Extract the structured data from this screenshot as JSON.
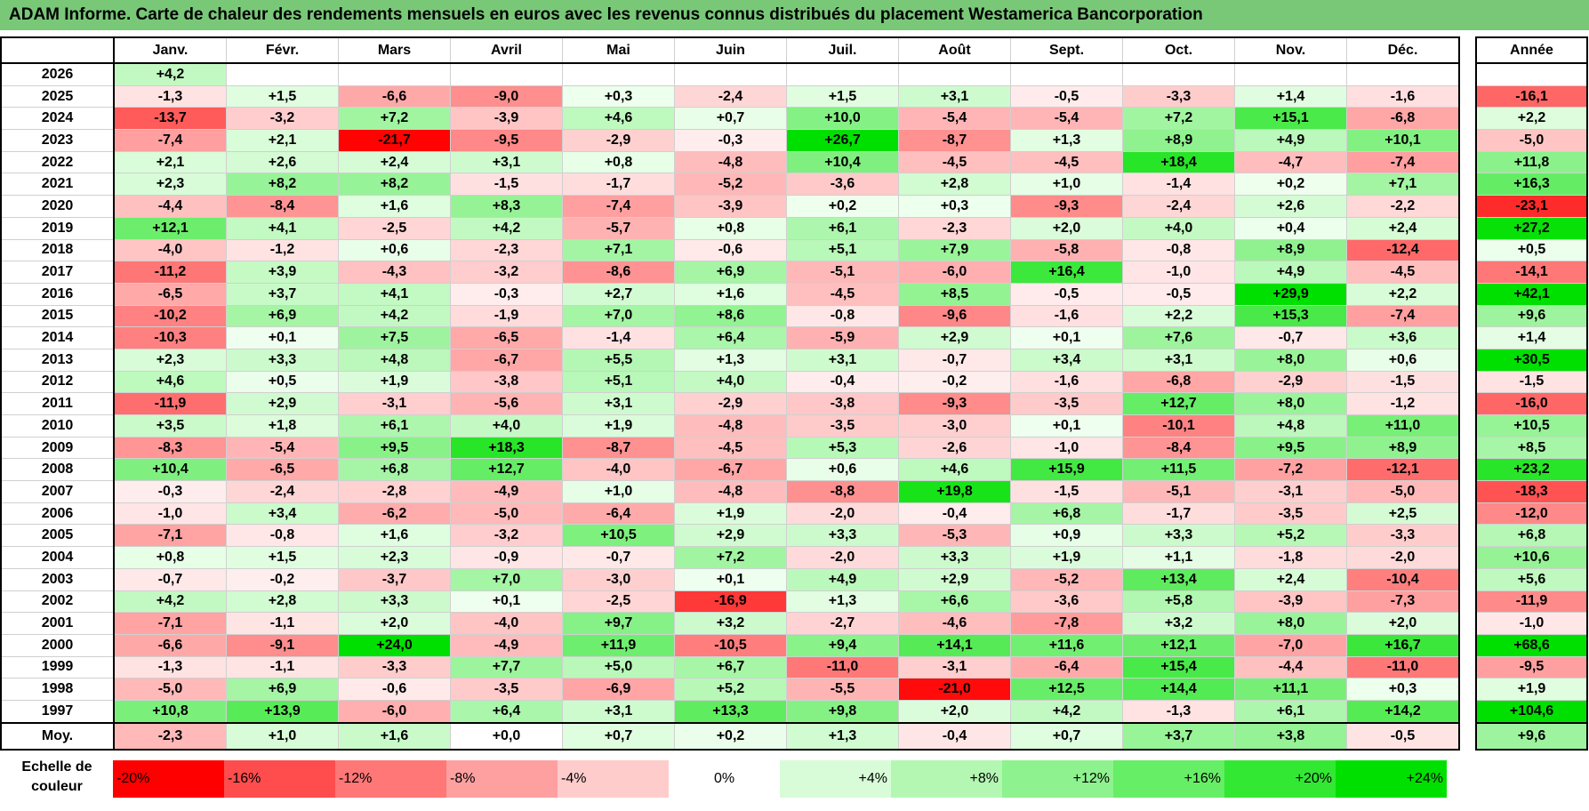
{
  "title": "ADAM Informe. Carte de chaleur des rendements mensuels en euros avec les revenus connus distribués du placement Westamerica Bancorporation",
  "chart_data": {
    "type": "heatmap",
    "title": "ADAM Informe. Carte de chaleur des rendements mensuels en euros avec les revenus connus distribués du placement Westamerica Bancorporation",
    "columns": [
      "Janv.",
      "Févr.",
      "Mars",
      "Avril",
      "Mai",
      "Juin",
      "Juil.",
      "Août",
      "Sept.",
      "Oct.",
      "Nov.",
      "Déc."
    ],
    "year_header": "Année",
    "avg_label": "Moy.",
    "rows": [
      {
        "year": "2026",
        "months": [
          "+4,2",
          "",
          "",
          "",
          "",
          "",
          "",
          "",
          "",
          "",
          "",
          ""
        ],
        "annual": ""
      },
      {
        "year": "2025",
        "months": [
          "-1,3",
          "+1,5",
          "-6,6",
          "-9,0",
          "+0,3",
          "-2,4",
          "+1,5",
          "+3,1",
          "-0,5",
          "-3,3",
          "+1,4",
          "-1,6"
        ],
        "annual": "-16,1"
      },
      {
        "year": "2024",
        "months": [
          "-13,7",
          "-3,2",
          "+7,2",
          "-3,9",
          "+4,6",
          "+0,7",
          "+10,0",
          "-5,4",
          "-5,4",
          "+7,2",
          "+15,1",
          "-6,8"
        ],
        "annual": "+2,2"
      },
      {
        "year": "2023",
        "months": [
          "-7,4",
          "+2,1",
          "-21,7",
          "-9,5",
          "-2,9",
          "-0,3",
          "+26,7",
          "-8,7",
          "+1,3",
          "+8,9",
          "+4,9",
          "+10,1"
        ],
        "annual": "-5,0"
      },
      {
        "year": "2022",
        "months": [
          "+2,1",
          "+2,6",
          "+2,4",
          "+3,1",
          "+0,8",
          "-4,8",
          "+10,4",
          "-4,5",
          "-4,5",
          "+18,4",
          "-4,7",
          "-7,4"
        ],
        "annual": "+11,8"
      },
      {
        "year": "2021",
        "months": [
          "+2,3",
          "+8,2",
          "+8,2",
          "-1,5",
          "-1,7",
          "-5,2",
          "-3,6",
          "+2,8",
          "+1,0",
          "-1,4",
          "+0,2",
          "+7,1"
        ],
        "annual": "+16,3"
      },
      {
        "year": "2020",
        "months": [
          "-4,4",
          "-8,4",
          "+1,6",
          "+8,3",
          "-7,4",
          "-3,9",
          "+0,2",
          "+0,3",
          "-9,3",
          "-2,4",
          "+2,6",
          "-2,2"
        ],
        "annual": "-23,1"
      },
      {
        "year": "2019",
        "months": [
          "+12,1",
          "+4,1",
          "-2,5",
          "+4,2",
          "-5,7",
          "+0,8",
          "+6,1",
          "-2,3",
          "+2,0",
          "+4,0",
          "+0,4",
          "+2,4"
        ],
        "annual": "+27,2"
      },
      {
        "year": "2018",
        "months": [
          "-4,0",
          "-1,2",
          "+0,6",
          "-2,3",
          "+7,1",
          "-0,6",
          "+5,1",
          "+7,9",
          "-5,8",
          "-0,8",
          "+8,9",
          "-12,4"
        ],
        "annual": "+0,5"
      },
      {
        "year": "2017",
        "months": [
          "-11,2",
          "+3,9",
          "-4,3",
          "-3,2",
          "-8,6",
          "+6,9",
          "-5,1",
          "-6,0",
          "+16,4",
          "-1,0",
          "+4,9",
          "-4,5"
        ],
        "annual": "-14,1"
      },
      {
        "year": "2016",
        "months": [
          "-6,5",
          "+3,7",
          "+4,1",
          "-0,3",
          "+2,7",
          "+1,6",
          "-4,5",
          "+8,5",
          "-0,5",
          "-0,5",
          "+29,9",
          "+2,2"
        ],
        "annual": "+42,1"
      },
      {
        "year": "2015",
        "months": [
          "-10,2",
          "+6,9",
          "+4,2",
          "-1,9",
          "+7,0",
          "+8,6",
          "-0,8",
          "-9,6",
          "-1,6",
          "+2,2",
          "+15,3",
          "-7,4"
        ],
        "annual": "+9,6"
      },
      {
        "year": "2014",
        "months": [
          "-10,3",
          "+0,1",
          "+7,5",
          "-6,5",
          "-1,4",
          "+6,4",
          "-5,9",
          "+2,9",
          "+0,1",
          "+7,6",
          "-0,7",
          "+3,6"
        ],
        "annual": "+1,4"
      },
      {
        "year": "2013",
        "months": [
          "+2,3",
          "+3,3",
          "+4,8",
          "-6,7",
          "+5,5",
          "+1,3",
          "+3,1",
          "-0,7",
          "+3,4",
          "+3,1",
          "+8,0",
          "+0,6"
        ],
        "annual": "+30,5"
      },
      {
        "year": "2012",
        "months": [
          "+4,6",
          "+0,5",
          "+1,9",
          "-3,8",
          "+5,1",
          "+4,0",
          "-0,4",
          "-0,2",
          "-1,6",
          "-6,8",
          "-2,9",
          "-1,5"
        ],
        "annual": "-1,5"
      },
      {
        "year": "2011",
        "months": [
          "-11,9",
          "+2,9",
          "-3,1",
          "-5,6",
          "+3,1",
          "-2,9",
          "-3,8",
          "-9,3",
          "-3,5",
          "+12,7",
          "+8,0",
          "-1,2"
        ],
        "annual": "-16,0"
      },
      {
        "year": "2010",
        "months": [
          "+3,5",
          "+1,8",
          "+6,1",
          "+4,0",
          "+1,9",
          "-4,8",
          "-3,5",
          "-3,0",
          "+0,1",
          "-10,1",
          "+4,8",
          "+11,0"
        ],
        "annual": "+10,5"
      },
      {
        "year": "2009",
        "months": [
          "-8,3",
          "-5,4",
          "+9,5",
          "+18,3",
          "-8,7",
          "-4,5",
          "+5,3",
          "-2,6",
          "-1,0",
          "-8,4",
          "+9,5",
          "+8,9"
        ],
        "annual": "+8,5"
      },
      {
        "year": "2008",
        "months": [
          "+10,4",
          "-6,5",
          "+6,8",
          "+12,7",
          "-4,0",
          "-6,7",
          "+0,6",
          "+4,6",
          "+15,9",
          "+11,5",
          "-7,2",
          "-12,1"
        ],
        "annual": "+23,2"
      },
      {
        "year": "2007",
        "months": [
          "-0,3",
          "-2,4",
          "-2,8",
          "-4,9",
          "+1,0",
          "-4,8",
          "-8,8",
          "+19,8",
          "-1,5",
          "-5,1",
          "-3,1",
          "-5,0"
        ],
        "annual": "-18,3"
      },
      {
        "year": "2006",
        "months": [
          "-1,0",
          "+3,4",
          "-6,2",
          "-5,0",
          "-6,4",
          "+1,9",
          "-2,0",
          "-0,4",
          "+6,8",
          "-1,7",
          "-3,5",
          "+2,5"
        ],
        "annual": "-12,0"
      },
      {
        "year": "2005",
        "months": [
          "-7,1",
          "-0,8",
          "+1,6",
          "-3,2",
          "+10,5",
          "+2,9",
          "+3,3",
          "-5,3",
          "+0,9",
          "+3,3",
          "+5,2",
          "-3,3"
        ],
        "annual": "+6,8"
      },
      {
        "year": "2004",
        "months": [
          "+0,8",
          "+1,5",
          "+2,3",
          "-0,9",
          "-0,7",
          "+7,2",
          "-2,0",
          "+3,3",
          "+1,9",
          "+1,1",
          "-1,8",
          "-2,0"
        ],
        "annual": "+10,6"
      },
      {
        "year": "2003",
        "months": [
          "-0,7",
          "-0,2",
          "-3,7",
          "+7,0",
          "-3,0",
          "+0,1",
          "+4,9",
          "+2,9",
          "-5,2",
          "+13,4",
          "+2,4",
          "-10,4"
        ],
        "annual": "+5,6"
      },
      {
        "year": "2002",
        "months": [
          "+4,2",
          "+2,8",
          "+3,3",
          "+0,1",
          "-2,5",
          "-16,9",
          "+1,3",
          "+6,6",
          "-3,6",
          "+5,8",
          "-3,9",
          "-7,3"
        ],
        "annual": "-11,9"
      },
      {
        "year": "2001",
        "months": [
          "-7,1",
          "-1,1",
          "+2,0",
          "-4,0",
          "+9,7",
          "+3,2",
          "-2,7",
          "-4,6",
          "-7,8",
          "+3,2",
          "+8,0",
          "+2,0"
        ],
        "annual": "-1,0"
      },
      {
        "year": "2000",
        "months": [
          "-6,6",
          "-9,1",
          "+24,0",
          "-4,9",
          "+11,9",
          "-10,5",
          "+9,4",
          "+14,1",
          "+11,6",
          "+12,1",
          "-7,0",
          "+16,7"
        ],
        "annual": "+68,6"
      },
      {
        "year": "1999",
        "months": [
          "-1,3",
          "-1,1",
          "-3,3",
          "+7,7",
          "+5,0",
          "+6,7",
          "-11,0",
          "-3,1",
          "-6,4",
          "+15,4",
          "-4,4",
          "-11,0"
        ],
        "annual": "-9,5"
      },
      {
        "year": "1998",
        "months": [
          "-5,0",
          "+6,9",
          "-0,6",
          "-3,5",
          "-6,9",
          "+5,2",
          "-5,5",
          "-21,0",
          "+12,5",
          "+14,4",
          "+11,1",
          "+0,3"
        ],
        "annual": "+1,9"
      },
      {
        "year": "1997",
        "months": [
          "+10,8",
          "+13,9",
          "-6,0",
          "+6,4",
          "+3,1",
          "+13,3",
          "+9,8",
          "+2,0",
          "+4,2",
          "-1,3",
          "+6,1",
          "+14,2"
        ],
        "annual": "+104,6"
      }
    ],
    "average": {
      "months": [
        "-2,3",
        "+1,0",
        "+1,6",
        "+0,0",
        "+0,7",
        "+0,2",
        "+1,3",
        "-0,4",
        "+0,7",
        "+3,7",
        "+3,8",
        "-0,5"
      ],
      "annual": "+9,6"
    },
    "color_scale": {
      "label": "Echelle de couleur",
      "steps": [
        "-20%",
        "-16%",
        "-12%",
        "-8%",
        "-4%",
        "0%",
        "+4%",
        "+8%",
        "+12%",
        "+16%",
        "+20%",
        "+24%"
      ],
      "colors": [
        "#ff0000",
        "#ff4d4d",
        "#ff7777",
        "#ffa0a0",
        "#ffcccc",
        "#ffffff",
        "#d8fcd8",
        "#b3f7b3",
        "#8ef28e",
        "#66ee66",
        "#33e833",
        "#00e000"
      ]
    }
  },
  "colors": {
    "title_bg": "#78c878",
    "neg_max": "#ff0000",
    "pos_max": "#00e000"
  }
}
